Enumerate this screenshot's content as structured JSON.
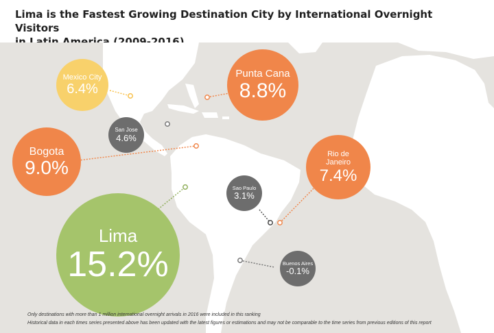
{
  "title_line1": "Lima is the Fastest Growing Destination City by International Overnight Visitors",
  "title_line2": "in Latin America (2009-2016)",
  "colors": {
    "map_land": "#ffffff",
    "map_sea": "#e5e3df",
    "yellow": "#f8d16b",
    "orange": "#f0864a",
    "green": "#a5c46b",
    "gray": "#6d6d6d"
  },
  "cities": [
    {
      "key": "mexico",
      "name": "Mexico City",
      "value": "6.4%",
      "color": "yellow"
    },
    {
      "key": "punta",
      "name": "Punta Cana",
      "value": "8.8%",
      "color": "orange"
    },
    {
      "key": "sanjose",
      "name": "San Jose",
      "value": "4.6%",
      "color": "gray"
    },
    {
      "key": "bogota",
      "name": "Bogota",
      "value": "9.0%",
      "color": "orange"
    },
    {
      "key": "rio",
      "name": "Rio de Janeiro",
      "value": "7.4%",
      "color": "orange"
    },
    {
      "key": "saopaulo",
      "name": "Sao Paulo",
      "value": "3.1%",
      "color": "gray"
    },
    {
      "key": "lima",
      "name": "Lima",
      "value": "15.2%",
      "color": "green"
    },
    {
      "key": "buenos",
      "name": "Buenos Aires",
      "value": "-0.1%",
      "color": "gray"
    }
  ],
  "footnote1": "Only destinations with more than 1 million international overnight arrivals in 2016 were included in this ranking",
  "footnote2": "Historical data in each times series presented above has been updated with the latest figures or estimations and may not be comparable to the time series from previous editions of this report"
}
